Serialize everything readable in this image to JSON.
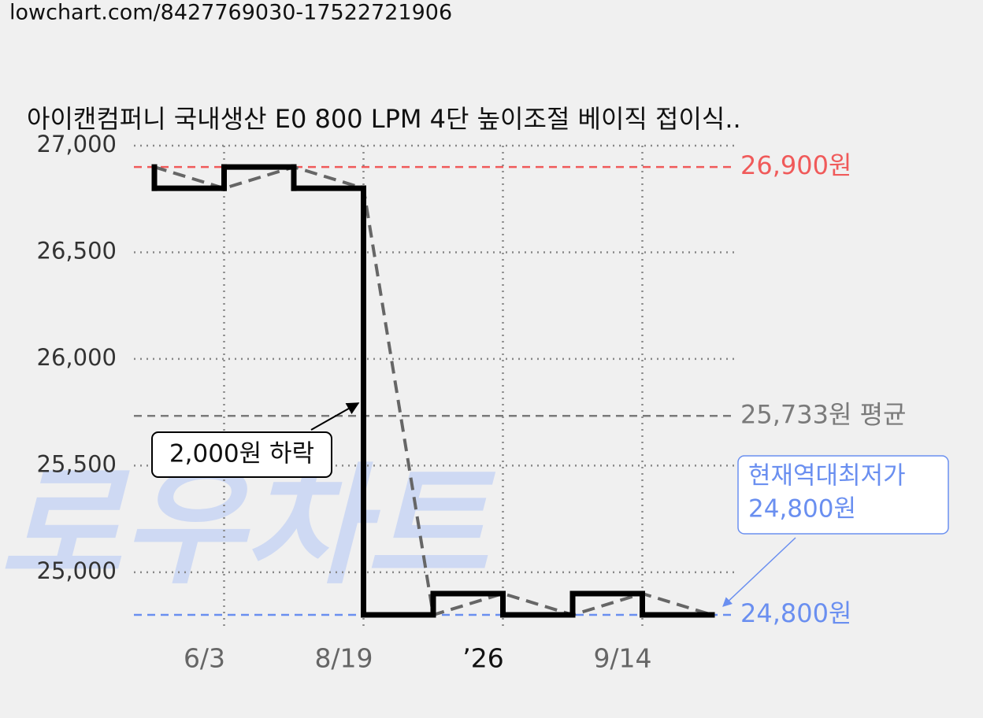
{
  "header": {
    "url": "lowchart.com/8427769030-17522721906"
  },
  "chart_data": {
    "type": "step-line",
    "title": "아이캔컴퍼니 국내생산 E0 800 LPM 4단 높이조절 베이직 접이식..",
    "watermark": "로우차트",
    "categories": [
      null,
      "6/3",
      null,
      "8/19",
      null,
      "’26",
      null,
      "9/14",
      null
    ],
    "series": [
      {
        "color": "#000000",
        "trend_color": "#666666",
        "values": [
          26900,
          26800,
          26900,
          26800,
          24800,
          24900,
          24800,
          24900,
          24800
        ]
      }
    ],
    "ylim": [
      24730,
      27000
    ],
    "yticks": [
      {
        "value": 25000,
        "label": "25,000"
      },
      {
        "value": 25500,
        "label": "25,500"
      },
      {
        "value": 26000,
        "label": "26,000"
      },
      {
        "value": 26500,
        "label": "26,500"
      },
      {
        "value": 27000,
        "label": "27,000"
      }
    ],
    "grid": true,
    "reference_lines": [
      {
        "value": 26900,
        "label": "26,900원",
        "color": "#f05a5a"
      },
      {
        "value": 25733,
        "label": "25,733원 평균",
        "color": "#7a7a7a"
      },
      {
        "value": 24800,
        "label": "24,800원",
        "color": "#6a8ff0"
      }
    ],
    "annotations": [
      {
        "text": "2,000원 하락"
      },
      {
        "lines": [
          "현재역대최저가",
          "24,800원"
        ],
        "color": "#6a8ff0"
      }
    ]
  }
}
